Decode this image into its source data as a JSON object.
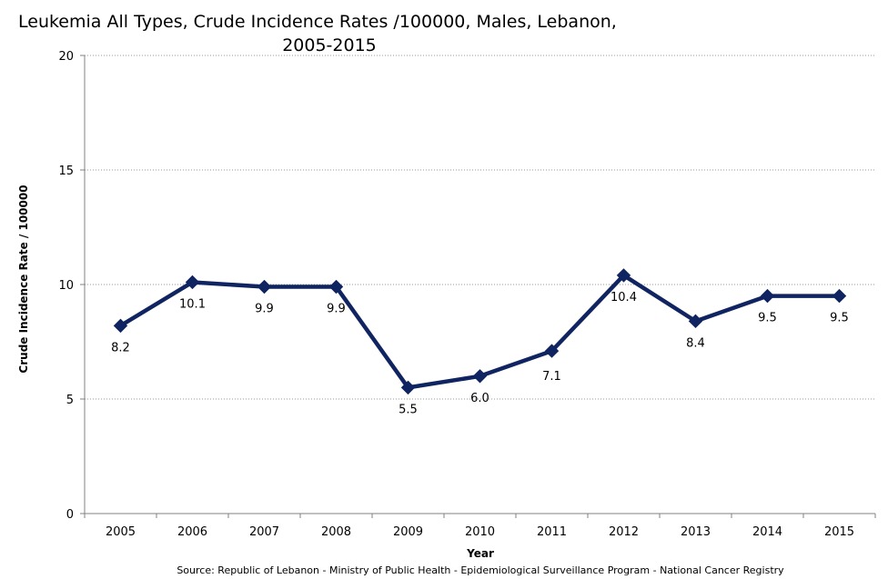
{
  "chart_data": {
    "type": "line",
    "title_line1": "Leukemia All Types, Crude Incidence Rates /100000,  Males, Lebanon,",
    "title_line2": "2005-2015",
    "xlabel": "Year",
    "ylabel": "Crude Incidence Rate / 100000",
    "ylim": [
      0,
      20
    ],
    "yticks": [
      0,
      5,
      10,
      15,
      20
    ],
    "x": [
      "2005",
      "2006",
      "2007",
      "2008",
      "2009",
      "2010",
      "2011",
      "2012",
      "2013",
      "2014",
      "2015"
    ],
    "values": [
      8.2,
      10.1,
      9.9,
      9.9,
      5.5,
      6.0,
      7.1,
      10.4,
      8.4,
      9.5,
      9.5
    ],
    "data_labels": [
      "8.2",
      "10.1",
      "9.9",
      "9.9",
      "5.5",
      "6.0",
      "7.1",
      "10.4",
      "8.4",
      "9.5",
      "9.5"
    ],
    "label_positions": [
      "below",
      "below",
      "below",
      "below",
      "below",
      "below",
      "above",
      "below",
      "below",
      "below",
      "below"
    ],
    "grid": "horizontal dotted",
    "line_color": "#0f2460",
    "marker": "diamond",
    "source": "Source:  Republic of Lebanon - Ministry of Public Health - Epidemiological Surveillance Program - National Cancer Registry"
  }
}
